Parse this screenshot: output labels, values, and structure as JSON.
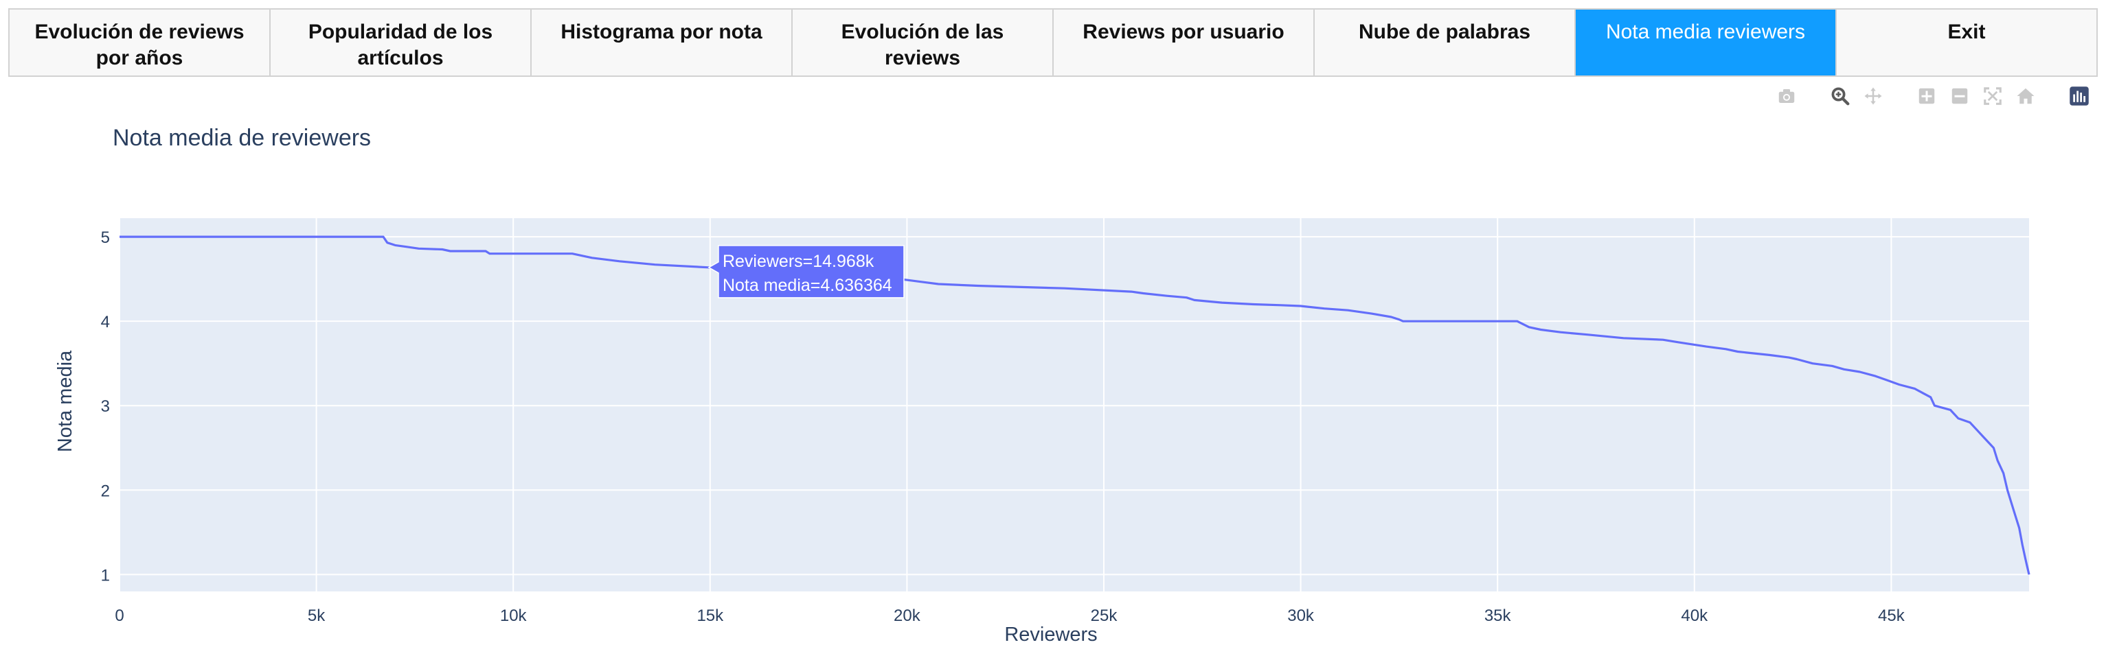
{
  "tabs": [
    {
      "label": "Evolución de reviews por años",
      "active": false
    },
    {
      "label": "Popularidad de los artículos",
      "active": false
    },
    {
      "label": "Histograma por nota",
      "active": false
    },
    {
      "label": "Evolución de las reviews",
      "active": false
    },
    {
      "label": "Reviews por usuario",
      "active": false
    },
    {
      "label": "Nube de palabras",
      "active": false
    },
    {
      "label": "Nota media reviewers",
      "active": true
    },
    {
      "label": "Exit",
      "active": false
    }
  ],
  "modebar": [
    "camera-icon",
    "zoom-icon",
    "pan-icon",
    "zoom-in-icon",
    "zoom-out-icon",
    "autoscale-icon",
    "reset-axes-icon",
    "plotly-logo-icon"
  ],
  "colors": {
    "accent": "#119dff",
    "line": "#636efa",
    "plot_bg": "#e5ecf6",
    "text": "#2a3f5f"
  },
  "chart_data": {
    "type": "line",
    "title": "Nota media de reviewers",
    "xlabel": "Reviewers",
    "ylabel": "Nota media",
    "xlim": [
      0,
      48500
    ],
    "ylim": [
      0.8,
      5.22
    ],
    "xticks": [
      0,
      5000,
      10000,
      15000,
      20000,
      25000,
      30000,
      35000,
      40000,
      45000
    ],
    "xtick_labels": [
      "0",
      "5k",
      "10k",
      "15k",
      "20k",
      "25k",
      "30k",
      "35k",
      "40k",
      "45k"
    ],
    "yticks": [
      1,
      2,
      3,
      4,
      5
    ],
    "ytick_labels": [
      "1",
      "2",
      "3",
      "4",
      "5"
    ],
    "grid": true,
    "series": [
      {
        "x": [
          0,
          6700,
          6800,
          7000,
          7300,
          7600,
          8200,
          8400,
          9300,
          9400,
          10000,
          11500,
          12000,
          12700,
          13600,
          14968,
          15500,
          16200,
          17000,
          19800,
          20300,
          20800,
          21800,
          23200,
          24000,
          25700,
          26000,
          26600,
          27100,
          27300,
          28000,
          28800,
          29500,
          30000,
          30600,
          31200,
          31800,
          32300,
          32500,
          32600,
          35500,
          35800,
          36100,
          36600,
          37300,
          38200,
          39200,
          39600,
          40300,
          40800,
          41100,
          41900,
          42400,
          42600,
          43000,
          43500,
          43800,
          44200,
          44600,
          44900,
          45200,
          45600,
          45800,
          46000,
          46100,
          46500,
          46700,
          47000,
          47200,
          47400,
          47600,
          47700,
          47850,
          47950,
          48050,
          48150,
          48250,
          48330,
          48400,
          48450,
          48500
        ],
        "y": [
          5.0,
          5.0,
          4.93,
          4.9,
          4.88,
          4.86,
          4.85,
          4.83,
          4.83,
          4.8,
          4.8,
          4.8,
          4.75,
          4.71,
          4.67,
          4.636364,
          4.6,
          4.55,
          4.55,
          4.5,
          4.47,
          4.44,
          4.42,
          4.4,
          4.39,
          4.35,
          4.33,
          4.3,
          4.28,
          4.25,
          4.22,
          4.2,
          4.19,
          4.18,
          4.15,
          4.13,
          4.09,
          4.05,
          4.02,
          4.0,
          4.0,
          3.93,
          3.9,
          3.87,
          3.84,
          3.8,
          3.78,
          3.75,
          3.7,
          3.67,
          3.64,
          3.6,
          3.57,
          3.55,
          3.5,
          3.47,
          3.43,
          3.4,
          3.35,
          3.3,
          3.25,
          3.2,
          3.15,
          3.1,
          3.0,
          2.95,
          2.85,
          2.8,
          2.7,
          2.6,
          2.5,
          2.35,
          2.2,
          2.0,
          1.85,
          1.7,
          1.55,
          1.35,
          1.2,
          1.1,
          1.0
        ]
      }
    ],
    "hover": {
      "x_label": "Reviewers=14.968k",
      "y_label": "Nota media=4.636364",
      "x": 14968,
      "y": 4.636364
    }
  }
}
